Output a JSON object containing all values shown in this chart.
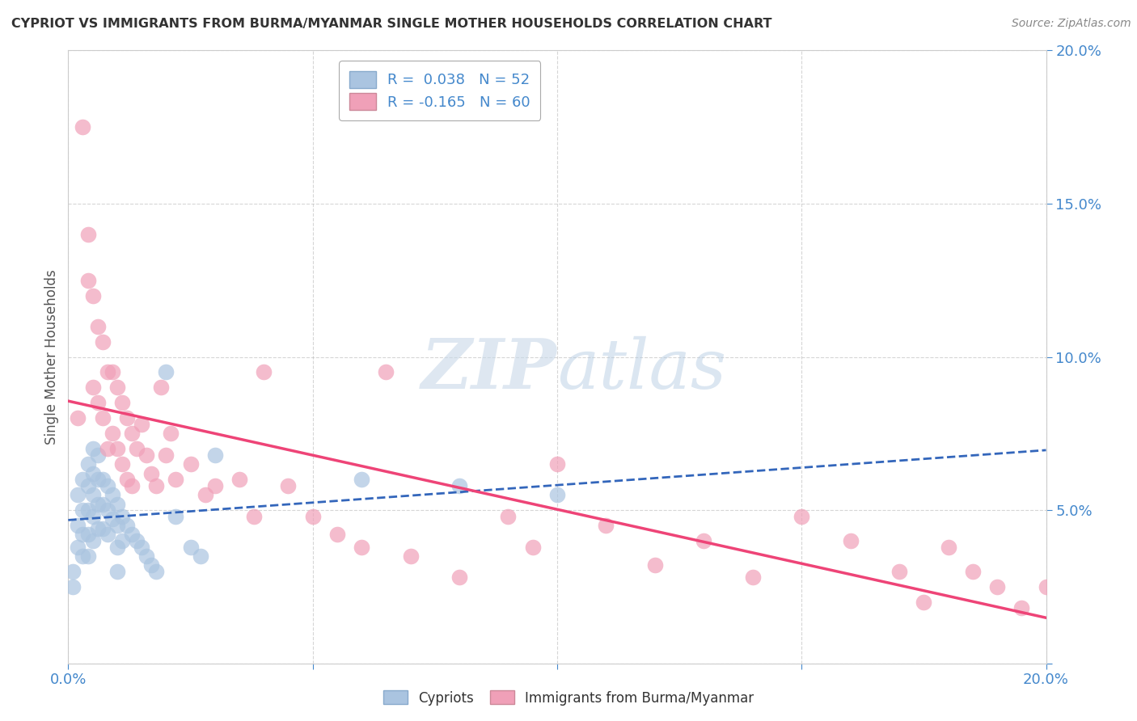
{
  "title": "CYPRIOT VS IMMIGRANTS FROM BURMA/MYANMAR SINGLE MOTHER HOUSEHOLDS CORRELATION CHART",
  "source": "Source: ZipAtlas.com",
  "ylabel": "Single Mother Households",
  "xlim": [
    0.0,
    0.2
  ],
  "ylim": [
    0.0,
    0.2
  ],
  "cypriot_R": 0.038,
  "cypriot_N": 52,
  "burma_R": -0.165,
  "burma_N": 60,
  "cypriot_color": "#aac4e0",
  "burma_color": "#f0a0b8",
  "cypriot_line_color": "#3366bb",
  "burma_line_color": "#ee4477",
  "background_color": "#ffffff",
  "grid_color": "#bbbbbb",
  "cypriot_x": [
    0.001,
    0.001,
    0.002,
    0.002,
    0.002,
    0.003,
    0.003,
    0.003,
    0.003,
    0.004,
    0.004,
    0.004,
    0.004,
    0.004,
    0.005,
    0.005,
    0.005,
    0.005,
    0.005,
    0.006,
    0.006,
    0.006,
    0.006,
    0.007,
    0.007,
    0.007,
    0.008,
    0.008,
    0.008,
    0.009,
    0.009,
    0.01,
    0.01,
    0.01,
    0.01,
    0.011,
    0.011,
    0.012,
    0.013,
    0.014,
    0.015,
    0.016,
    0.017,
    0.018,
    0.02,
    0.022,
    0.025,
    0.027,
    0.03,
    0.06,
    0.08,
    0.1
  ],
  "cypriot_y": [
    0.03,
    0.025,
    0.055,
    0.045,
    0.038,
    0.06,
    0.05,
    0.042,
    0.035,
    0.065,
    0.058,
    0.05,
    0.042,
    0.035,
    0.07,
    0.062,
    0.055,
    0.048,
    0.04,
    0.068,
    0.06,
    0.052,
    0.044,
    0.06,
    0.052,
    0.044,
    0.058,
    0.05,
    0.042,
    0.055,
    0.047,
    0.052,
    0.045,
    0.038,
    0.03,
    0.048,
    0.04,
    0.045,
    0.042,
    0.04,
    0.038,
    0.035,
    0.032,
    0.03,
    0.095,
    0.048,
    0.038,
    0.035,
    0.068,
    0.06,
    0.058,
    0.055
  ],
  "burma_x": [
    0.002,
    0.003,
    0.004,
    0.004,
    0.005,
    0.005,
    0.006,
    0.006,
    0.007,
    0.007,
    0.008,
    0.008,
    0.009,
    0.009,
    0.01,
    0.01,
    0.011,
    0.011,
    0.012,
    0.012,
    0.013,
    0.013,
    0.014,
    0.015,
    0.016,
    0.017,
    0.018,
    0.019,
    0.02,
    0.021,
    0.022,
    0.025,
    0.028,
    0.03,
    0.035,
    0.038,
    0.04,
    0.045,
    0.05,
    0.055,
    0.06,
    0.065,
    0.07,
    0.08,
    0.09,
    0.095,
    0.1,
    0.11,
    0.12,
    0.13,
    0.14,
    0.15,
    0.16,
    0.17,
    0.175,
    0.18,
    0.185,
    0.19,
    0.195,
    0.2
  ],
  "burma_y": [
    0.08,
    0.175,
    0.14,
    0.125,
    0.12,
    0.09,
    0.11,
    0.085,
    0.105,
    0.08,
    0.095,
    0.07,
    0.095,
    0.075,
    0.09,
    0.07,
    0.085,
    0.065,
    0.08,
    0.06,
    0.075,
    0.058,
    0.07,
    0.078,
    0.068,
    0.062,
    0.058,
    0.09,
    0.068,
    0.075,
    0.06,
    0.065,
    0.055,
    0.058,
    0.06,
    0.048,
    0.095,
    0.058,
    0.048,
    0.042,
    0.038,
    0.095,
    0.035,
    0.028,
    0.048,
    0.038,
    0.065,
    0.045,
    0.032,
    0.04,
    0.028,
    0.048,
    0.04,
    0.03,
    0.02,
    0.038,
    0.03,
    0.025,
    0.018,
    0.025
  ]
}
